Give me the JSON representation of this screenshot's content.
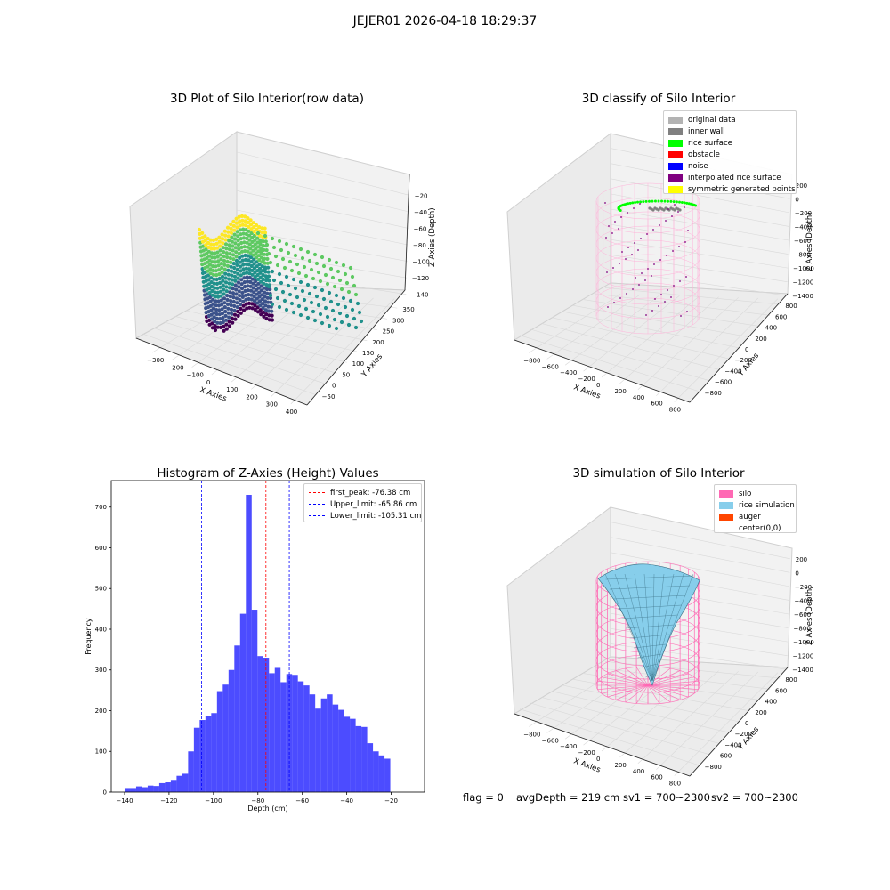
{
  "figure": {
    "suptitle": "JEJER01 2026-04-18 18:29:37"
  },
  "panels": {
    "top_left": {
      "title": "3D Plot of Silo Interior(row data)",
      "xlabel": "X Axies",
      "ylabel": "Y Axies",
      "zlabel": "Z Axies (Depth)",
      "x_ticks": [
        "−300",
        "−200",
        "−100",
        "0",
        "100",
        "200",
        "300",
        "400"
      ],
      "y_ticks": [
        "−50",
        "0",
        "50",
        "100",
        "150",
        "200",
        "250",
        "300",
        "350"
      ],
      "z_ticks": [
        "−20",
        "−40",
        "−60",
        "−80",
        "−100",
        "−120",
        "−140"
      ],
      "colormap": "viridis"
    },
    "top_right": {
      "title": "3D classify of Silo Interior",
      "xlabel": "X Axies",
      "ylabel": "Y Axies",
      "zlabel": "Z Axies (Depth)",
      "x_ticks": [
        "−800",
        "−600",
        "−400",
        "−200",
        "0",
        "200",
        "400",
        "600",
        "800"
      ],
      "y_ticks": [
        "−800",
        "−600",
        "−400",
        "−200",
        "0",
        "200",
        "400",
        "600",
        "800"
      ],
      "z_ticks": [
        "200",
        "0",
        "−200",
        "−400",
        "−600",
        "−800",
        "−1000",
        "−1200",
        "−1400"
      ],
      "legend": [
        {
          "label": "original data",
          "color": "#b3b3b3"
        },
        {
          "label": "inner wall",
          "color": "#808080"
        },
        {
          "label": "rice surface",
          "color": "#00ff00"
        },
        {
          "label": "obstacle",
          "color": "#ff0000"
        },
        {
          "label": "noise",
          "color": "#0000ff"
        },
        {
          "label": "interpolated rice surface",
          "color": "#800080"
        },
        {
          "label": "symmetric generated points",
          "color": "#ffff00"
        }
      ]
    },
    "bottom_right": {
      "title": "3D simulation of Silo Interior",
      "xlabel": "X Axies",
      "ylabel": "Y Axies",
      "zlabel": "Z Axies (Depth)",
      "x_ticks": [
        "−800",
        "−600",
        "−400",
        "−200",
        "0",
        "200",
        "400",
        "600",
        "800"
      ],
      "y_ticks": [
        "−800",
        "−600",
        "−400",
        "−200",
        "0",
        "200",
        "400",
        "600",
        "800"
      ],
      "z_ticks": [
        "200",
        "0",
        "−200",
        "−400",
        "−600",
        "−800",
        "−1000",
        "−1200",
        "−1400"
      ],
      "legend": [
        {
          "label": "silo",
          "color": "#ff69b4"
        },
        {
          "label": "rice simulation",
          "color": "#87ceeb"
        },
        {
          "label": "auger",
          "color": "#ff4500"
        },
        {
          "label": "center(0,0)",
          "color": "#ffffff"
        }
      ]
    },
    "status": {
      "flag": "flag = 0",
      "avg_depth": "avgDepth = 219 cm",
      "sv1": "sv1 = 700~2300",
      "sv2": "sv2 = 700~2300"
    }
  },
  "chart_data": {
    "type": "bar",
    "title": "Histogram of Z-Axies (Height) Values",
    "xlabel": "Depth (cm)",
    "ylabel": "Frequency",
    "xlim": [
      -146,
      -5
    ],
    "ylim": [
      0,
      765
    ],
    "x_ticks": [
      -140,
      -120,
      -100,
      -80,
      -60,
      -40,
      -20
    ],
    "y_ticks": [
      0,
      100,
      200,
      300,
      400,
      500,
      600,
      700
    ],
    "bar_color": "#0000ff",
    "bar_alpha": 0.7,
    "bin_edges": [
      -140.0,
      -137.4,
      -134.8,
      -132.2,
      -129.6,
      -127.0,
      -124.4,
      -121.8,
      -119.2,
      -116.6,
      -114.0,
      -111.4,
      -108.8,
      -106.2,
      -103.6,
      -101.0,
      -98.4,
      -95.8,
      -93.2,
      -90.6,
      -88.0,
      -85.4,
      -82.8,
      -80.2,
      -77.6,
      -75.0,
      -72.4,
      -69.8,
      -67.2,
      -64.6,
      -62.0,
      -59.4,
      -56.8,
      -54.2,
      -51.6,
      -49.0,
      -46.4,
      -43.8,
      -41.2,
      -38.6,
      -36.0,
      -33.4,
      -30.8,
      -28.2,
      -25.6,
      -23.0,
      -20.4,
      -17.8,
      -15.2,
      -12.6,
      -10.0,
      -7.4
    ],
    "counts": [
      10,
      10,
      14,
      12,
      16,
      15,
      22,
      24,
      30,
      40,
      45,
      100,
      158,
      177,
      187,
      194,
      248,
      264,
      300,
      360,
      438,
      730,
      448,
      334,
      330,
      292,
      305,
      270,
      290,
      288,
      272,
      262,
      240,
      205,
      230,
      240,
      215,
      202,
      185,
      180,
      162,
      160,
      120,
      100,
      90,
      82,
      0,
      0,
      0,
      0,
      0
    ],
    "vlines": [
      {
        "label": "first_peak: -76.38 cm",
        "x": -76.38,
        "color": "#ff0000"
      },
      {
        "label": "Upper_limit: -65.86 cm",
        "x": -65.86,
        "color": "#0000ff"
      },
      {
        "label": "Lower_limit: -105.31 cm",
        "x": -105.31,
        "color": "#0000ff"
      }
    ],
    "legend_position": "top-right"
  }
}
